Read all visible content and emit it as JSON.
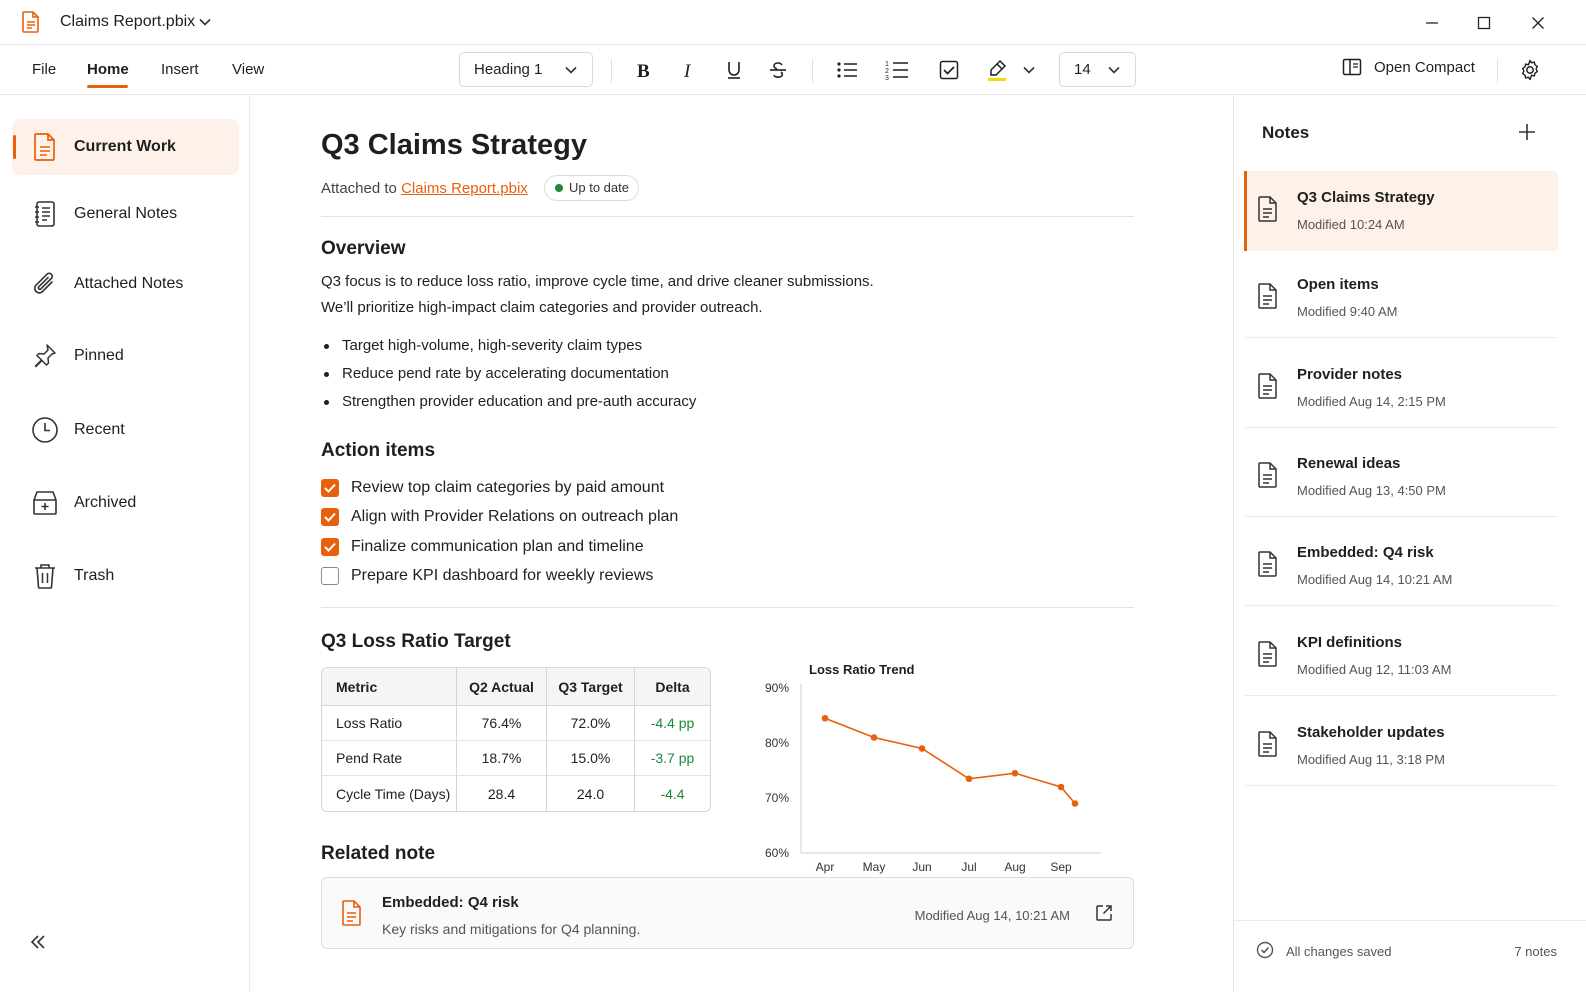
{
  "window": {
    "title": "Claims Report.pbix"
  },
  "menu": {
    "tabs": [
      {
        "label": "File"
      },
      {
        "label": "Home"
      },
      {
        "label": "Insert"
      },
      {
        "label": "View"
      }
    ],
    "active_tab": "Home"
  },
  "toolbar": {
    "style_value": "Heading 1",
    "font_size_value": "14",
    "open_compact_label": "Open Compact",
    "highlight_color": "#f5d90a"
  },
  "sidebar": {
    "items": [
      {
        "label": "Current Work",
        "icon": "document-icon",
        "active": true
      },
      {
        "label": "General Notes",
        "icon": "notebook-icon"
      },
      {
        "label": "Attached Notes",
        "icon": "paperclip-icon"
      },
      {
        "label": "Pinned",
        "icon": "pin-icon"
      },
      {
        "label": "Recent",
        "icon": "clock-icon"
      },
      {
        "label": "Archived",
        "icon": "archive-icon"
      },
      {
        "label": "Trash",
        "icon": "trash-icon"
      }
    ]
  },
  "document": {
    "title": "Q3 Claims Strategy",
    "attached_prefix": "Attached to",
    "attached_file": "Claims Report.pbix",
    "status": "Up to date",
    "overview_heading": "Overview",
    "overview_lines": [
      "Q3 focus is to reduce loss ratio, improve cycle time, and drive cleaner submissions.",
      "We’ll prioritize high-impact claim categories and provider outreach."
    ],
    "bullets": [
      "Target high-volume, high-severity claim types",
      "Reduce pend rate by accelerating documentation",
      "Strengthen provider education and pre-auth accuracy"
    ],
    "action_heading": "Action items",
    "action_items": [
      {
        "label": "Review top claim categories by paid amount",
        "checked": true
      },
      {
        "label": "Align with Provider Relations on outreach plan",
        "checked": true
      },
      {
        "label": "Finalize communication plan and timeline",
        "checked": true
      },
      {
        "label": "Prepare KPI dashboard for weekly reviews",
        "checked": false
      }
    ],
    "target_heading": "Q3 Loss Ratio Target",
    "table": {
      "headers": [
        "Metric",
        "Q2 Actual",
        "Q3 Target",
        "Delta"
      ],
      "rows": [
        [
          "Loss Ratio",
          "76.4%",
          "72.0%",
          "-4.4 pp"
        ],
        [
          "Pend Rate",
          "18.7%",
          "15.0%",
          "-3.7 pp"
        ],
        [
          "Cycle Time (Days)",
          "28.4",
          "24.0",
          "-4.4"
        ]
      ]
    },
    "related_heading": "Related note",
    "related": {
      "title": "Embedded: Q4 risk",
      "description": "Key risks and mitigations for Q4 planning.",
      "modified": "Modified Aug 14, 10:21 AM"
    }
  },
  "chart_data": {
    "type": "line",
    "title": "Loss Ratio Trend",
    "x": [
      "Apr",
      "May",
      "Jun",
      "Jul",
      "Aug",
      "Sep",
      "Sep (end)"
    ],
    "x_tick_labels": [
      "Apr",
      "May",
      "Jun",
      "Jul",
      "Aug",
      "Sep"
    ],
    "y_tick_labels": [
      "90%",
      "80%",
      "70%",
      "60%"
    ],
    "series": [
      {
        "values": [
          84.5,
          81,
          79,
          73.5,
          74.5,
          72,
          69
        ],
        "color": "#e8600c"
      }
    ],
    "ylim": [
      60,
      90
    ],
    "xlabel": "",
    "ylabel": "",
    "grid": false
  },
  "notes_panel": {
    "title": "Notes",
    "items": [
      {
        "title": "Q3 Claims Strategy",
        "modified": "Modified 10:24 AM",
        "active": true
      },
      {
        "title": "Open items",
        "modified": "Modified 9:40 AM"
      },
      {
        "title": "Provider notes",
        "modified": "Modified Aug 14, 2:15 PM"
      },
      {
        "title": "Renewal ideas",
        "modified": "Modified Aug 13, 4:50 PM"
      },
      {
        "title": "Embedded: Q4 risk",
        "modified": "Modified Aug 14, 10:21 AM"
      },
      {
        "title": "KPI definitions",
        "modified": "Modified Aug 12, 11:03 AM"
      },
      {
        "title": "Stakeholder updates",
        "modified": "Modified Aug 11, 3:18 PM"
      }
    ],
    "footer_status": "All changes saved",
    "footer_count": "7 notes"
  },
  "colors": {
    "accent": "#e8600c",
    "positive": "#1a8a3a"
  }
}
